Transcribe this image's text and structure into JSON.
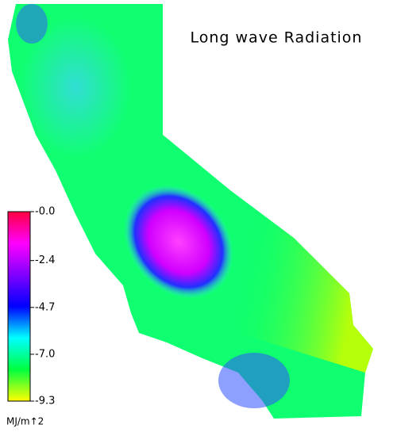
{
  "title": "Long wave Radiation",
  "colorbar": {
    "range": [
      -9.3,
      0
    ],
    "ticks": [
      {
        "value": 0,
        "label": "-0.0"
      },
      -2.4,
      -4.7,
      {
        "value": -7,
        "label": "-7.0"
      },
      -9.3
    ],
    "colors": [
      "#ff0040",
      "#ff00ff",
      "#8000ff",
      "#0000ff",
      "#00ffff",
      "#00ff40",
      "#ffff00"
    ],
    "unit": "MJ/m↑2"
  }
}
